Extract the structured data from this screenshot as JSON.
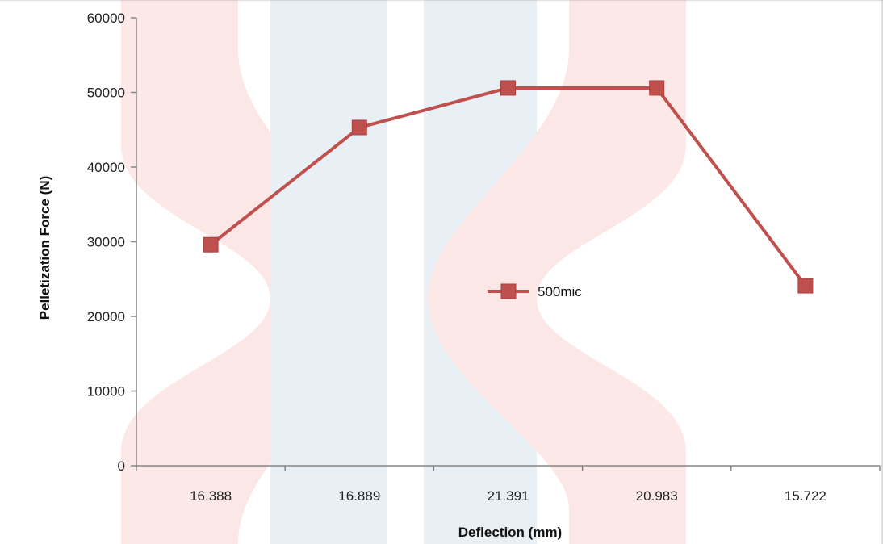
{
  "chart_data": {
    "type": "line",
    "title": "",
    "xlabel": "Deflection (mm)",
    "ylabel": "Pelletization Force (N)",
    "categories": [
      "16.388",
      "16.889",
      "21.391",
      "20.983",
      "15.722"
    ],
    "series": [
      {
        "name": "500mic",
        "values": [
          29600,
          45300,
          50600,
          50600,
          24100
        ],
        "color": "#c0504d",
        "marker": "square"
      }
    ],
    "ylim": [
      0,
      60000
    ],
    "yticks": [
      0,
      10000,
      20000,
      30000,
      40000,
      50000,
      60000
    ],
    "grid": false,
    "legend_position": "center-right"
  }
}
